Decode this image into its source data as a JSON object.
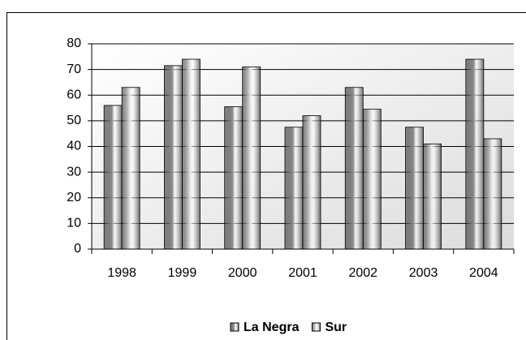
{
  "chart_data": {
    "type": "bar",
    "categories": [
      "1998",
      "1999",
      "2000",
      "2001",
      "2002",
      "2003",
      "2004"
    ],
    "series": [
      {
        "name": "La Negra",
        "color": "#8c8c8c",
        "values": [
          56,
          71.5,
          55.5,
          47.5,
          63,
          47.5,
          74
        ]
      },
      {
        "name": "Sur",
        "color": "#e8e8e8",
        "values": [
          63,
          74,
          71,
          52,
          54.5,
          41,
          43
        ]
      }
    ],
    "ylim": [
      0,
      80
    ],
    "yticks": [
      0,
      10,
      20,
      30,
      40,
      50,
      60,
      70,
      80
    ],
    "grid": true,
    "legend": "bottom"
  }
}
